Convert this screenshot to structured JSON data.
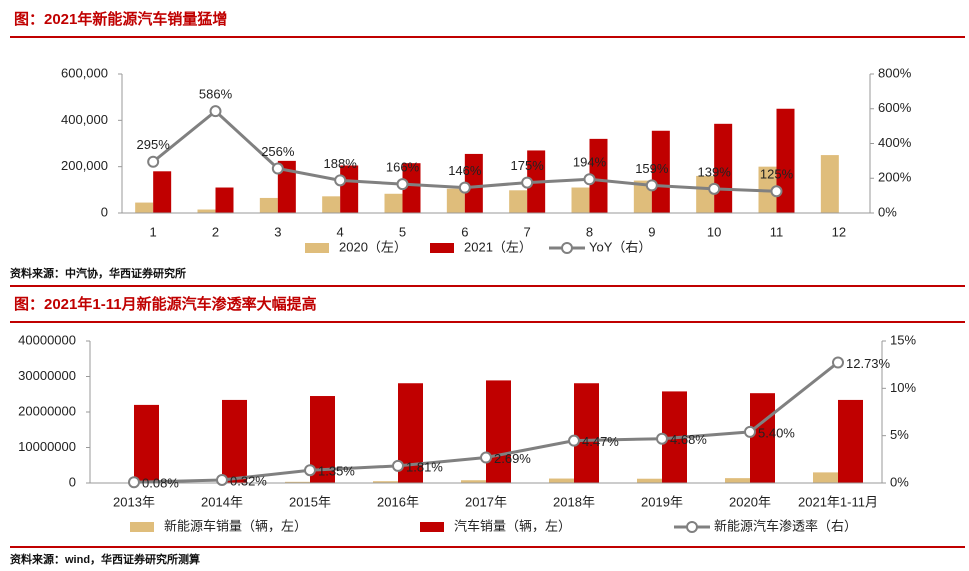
{
  "chart_data": [
    {
      "type": "bar_line",
      "title": "图：2021年新能源汽车销量猛增",
      "source": "资料来源：中汽协，华西证券研究所",
      "categories": [
        "1",
        "2",
        "3",
        "4",
        "5",
        "6",
        "7",
        "8",
        "9",
        "10",
        "11",
        "12"
      ],
      "ylim": [
        0,
        600000
      ],
      "yticks": [
        0,
        {
          "value": 200000,
          "label": "200,000"
        },
        {
          "value": 400000,
          "label": "400,000"
        },
        {
          "value": 600000,
          "label": "600,000"
        }
      ],
      "y2lim": [
        0,
        800
      ],
      "y2ticks": [
        {
          "value": 0,
          "label": "0%"
        },
        {
          "value": 200,
          "label": "200%"
        },
        {
          "value": 400,
          "label": "400%"
        },
        {
          "value": 600,
          "label": "600%"
        },
        {
          "value": 800,
          "label": "800%"
        }
      ],
      "series": [
        {
          "name": "2020（左）",
          "mark": "bar",
          "color": "#dfbd7b",
          "values": [
            45000,
            15000,
            65000,
            72000,
            83000,
            105000,
            98000,
            110000,
            140000,
            160000,
            200000,
            250000
          ]
        },
        {
          "name": "2021（左）",
          "mark": "bar",
          "color": "#c00000",
          "values": [
            180000,
            110000,
            225000,
            205000,
            215000,
            255000,
            270000,
            320000,
            355000,
            385000,
            450000,
            null
          ]
        },
        {
          "name": "YoY（右）",
          "mark": "line",
          "axis": "y2",
          "color": "#808080",
          "values": [
            295,
            586,
            256,
            188,
            166,
            146,
            175,
            194,
            159,
            139,
            125,
            null
          ],
          "value_labels": [
            "295%",
            "586%",
            "256%",
            "188%",
            "166%",
            "146%",
            "175%",
            "194%",
            "159%",
            "139%",
            "125%",
            null
          ]
        }
      ]
    },
    {
      "type": "bar_line",
      "title": "图：2021年1-11月新能源汽车渗透率大幅提高",
      "source": "资料来源：wind，华西证券研究所测算",
      "categories": [
        "2013年",
        "2014年",
        "2015年",
        "2016年",
        "2017年",
        "2018年",
        "2019年",
        "2020年",
        "2021年1-11月"
      ],
      "ylim": [
        0,
        40000000
      ],
      "yticks": [
        0,
        10000000,
        20000000,
        30000000,
        40000000
      ],
      "y2lim": [
        0,
        15
      ],
      "y2ticks": [
        {
          "value": 0,
          "label": "0%"
        },
        {
          "value": 5,
          "label": "5%"
        },
        {
          "value": 10,
          "label": "10%"
        },
        {
          "value": 15,
          "label": "15%"
        }
      ],
      "series": [
        {
          "name": "新能源车销量（辆，左）",
          "mark": "bar",
          "color": "#dfbd7b",
          "values": [
            17600,
            74800,
            331000,
            507000,
            777000,
            1256000,
            1206000,
            1367000,
            2990000
          ]
        },
        {
          "name": "汽车销量（辆，左）",
          "mark": "bar",
          "color": "#c00000",
          "values": [
            22000000,
            23400000,
            24500000,
            28100000,
            28900000,
            28100000,
            25800000,
            25300000,
            23400000
          ]
        },
        {
          "name": "新能源汽车渗透率（右）",
          "mark": "line",
          "axis": "y2",
          "color": "#808080",
          "values": [
            0.08,
            0.32,
            1.35,
            1.81,
            2.69,
            4.47,
            4.68,
            5.4,
            12.73
          ],
          "value_labels": [
            "0.08%",
            "0.32%",
            "1.35%",
            "1.81%",
            "2.69%",
            "4.47%",
            "4.68%",
            "5.40%",
            "12.73%"
          ]
        }
      ]
    }
  ]
}
